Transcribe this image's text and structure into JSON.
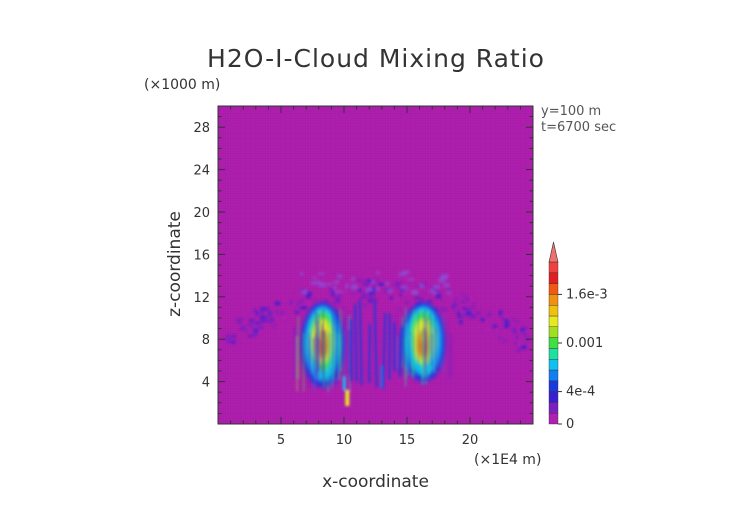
{
  "chart_data": {
    "type": "heatmap",
    "title": "H2O-I-Cloud Mixing Ratio",
    "xlabel": "x-coordinate",
    "ylabel": "z-coordinate",
    "x_unit": "(×1E4 m)",
    "y_unit": "(×1000 m)",
    "annotations": [
      "y=100 m",
      "t=6700 sec"
    ],
    "xlim": [
      0,
      25
    ],
    "ylim": [
      0,
      30
    ],
    "x_ticks": [
      5,
      10,
      15,
      20
    ],
    "y_ticks": [
      4,
      8,
      12,
      16,
      20,
      24,
      28
    ],
    "colorbar": {
      "range": [
        0,
        0.002
      ],
      "tick_values": [
        0,
        0.0004,
        0.001,
        0.0016
      ],
      "tick_labels": [
        "0",
        "4e-4",
        "0.001",
        "1.6e-3"
      ],
      "colors": [
        "#b020b0",
        "#7a1fc0",
        "#3a1fd0",
        "#1a3ae0",
        "#1080f0",
        "#10c0f0",
        "#20e0a0",
        "#40e040",
        "#a0e020",
        "#e8e820",
        "#f0c010",
        "#f09010",
        "#f05a10",
        "#e02020",
        "#f04040"
      ],
      "extend_color": "#f07070"
    },
    "background_color": "#b020b0",
    "features": [
      {
        "name": "anvil",
        "x_range": [
          0.5,
          24.5
        ],
        "z_range": [
          9,
          14.5
        ],
        "peak_value": 0.0003
      },
      {
        "name": "left-core",
        "x_center": 8.3,
        "z_range": [
          3,
          11
        ],
        "peak_value": 0.0018
      },
      {
        "name": "right-core",
        "x_center": 16.3,
        "z_range": [
          3.5,
          11
        ],
        "peak_value": 0.0017
      },
      {
        "name": "central-streaks",
        "x_range": [
          10.5,
          14.5
        ],
        "z_range": [
          3,
          12
        ],
        "peak_value": 0.0004
      }
    ]
  }
}
